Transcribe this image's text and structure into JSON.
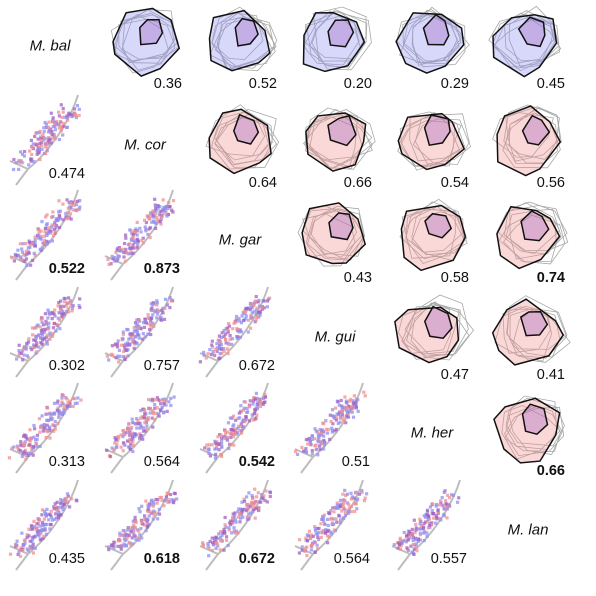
{
  "species": [
    "M. bal",
    "M. cor",
    "M. gar",
    "M. gui",
    "M. her",
    "M. lan"
  ],
  "upper_triangle": [
    {
      "row": 0,
      "col": 1,
      "value": "0.36",
      "bold": false
    },
    {
      "row": 0,
      "col": 2,
      "value": "0.52",
      "bold": false
    },
    {
      "row": 0,
      "col": 3,
      "value": "0.20",
      "bold": false
    },
    {
      "row": 0,
      "col": 4,
      "value": "0.29",
      "bold": false
    },
    {
      "row": 0,
      "col": 5,
      "value": "0.45",
      "bold": false
    },
    {
      "row": 1,
      "col": 2,
      "value": "0.64",
      "bold": false
    },
    {
      "row": 1,
      "col": 3,
      "value": "0.66",
      "bold": false
    },
    {
      "row": 1,
      "col": 4,
      "value": "0.54",
      "bold": false
    },
    {
      "row": 1,
      "col": 5,
      "value": "0.56",
      "bold": false
    },
    {
      "row": 2,
      "col": 3,
      "value": "0.43",
      "bold": false
    },
    {
      "row": 2,
      "col": 4,
      "value": "0.58",
      "bold": false
    },
    {
      "row": 2,
      "col": 5,
      "value": "0.74",
      "bold": true
    },
    {
      "row": 3,
      "col": 4,
      "value": "0.47",
      "bold": false
    },
    {
      "row": 3,
      "col": 5,
      "value": "0.41",
      "bold": false
    },
    {
      "row": 4,
      "col": 5,
      "value": "0.66",
      "bold": true
    }
  ],
  "lower_triangle": [
    {
      "row": 1,
      "col": 0,
      "value": "0.474",
      "bold": false
    },
    {
      "row": 2,
      "col": 0,
      "value": "0.522",
      "bold": true
    },
    {
      "row": 2,
      "col": 1,
      "value": "0.873",
      "bold": true
    },
    {
      "row": 3,
      "col": 0,
      "value": "0.302",
      "bold": false
    },
    {
      "row": 3,
      "col": 1,
      "value": "0.757",
      "bold": false
    },
    {
      "row": 3,
      "col": 2,
      "value": "0.672",
      "bold": false
    },
    {
      "row": 4,
      "col": 0,
      "value": "0.313",
      "bold": false
    },
    {
      "row": 4,
      "col": 1,
      "value": "0.564",
      "bold": false
    },
    {
      "row": 4,
      "col": 2,
      "value": "0.542",
      "bold": true
    },
    {
      "row": 4,
      "col": 3,
      "value": "0.51",
      "bold": false
    },
    {
      "row": 5,
      "col": 0,
      "value": "0.435",
      "bold": false
    },
    {
      "row": 5,
      "col": 1,
      "value": "0.618",
      "bold": true
    },
    {
      "row": 5,
      "col": 2,
      "value": "0.672",
      "bold": true
    },
    {
      "row": 5,
      "col": 3,
      "value": "0.564",
      "bold": false
    },
    {
      "row": 5,
      "col": 4,
      "value": "0.557",
      "bold": false
    }
  ],
  "colors": {
    "row_species": "#8f8ff0",
    "col_species": "#f08f8f",
    "overlap": "#a060c0",
    "outline": "#111111",
    "background_hulls": "#a8a8a8",
    "coast": "#bdbdbd"
  }
}
